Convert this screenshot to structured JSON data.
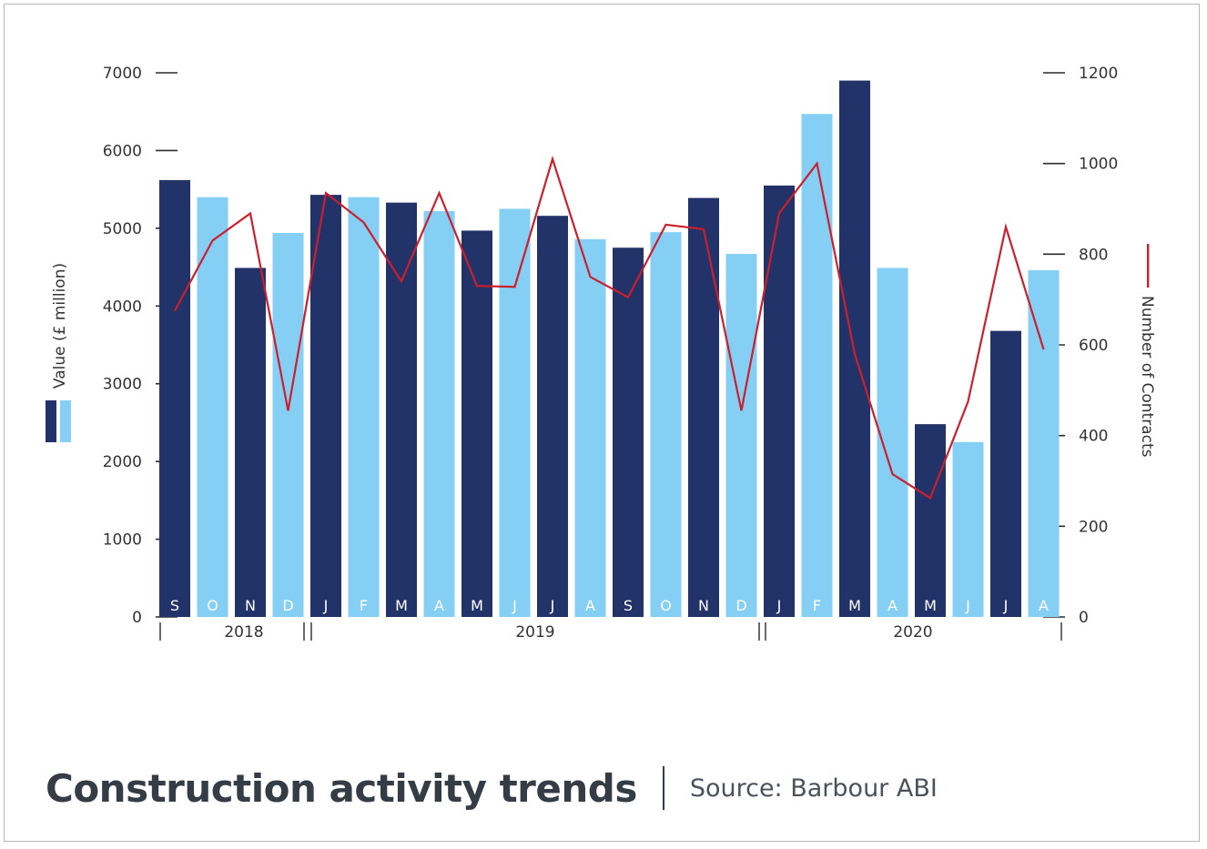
{
  "chart_data": {
    "type": "bar",
    "title": "Construction activity trends",
    "source": "Source: Barbour ABI",
    "ylabel_left": "Value (£ million)",
    "ylabel_right": "Number of Contracts",
    "ylim_left": [
      0,
      7000
    ],
    "ylim_right": [
      0,
      1200
    ],
    "yticks_left": [
      0,
      1000,
      2000,
      3000,
      4000,
      5000,
      6000,
      7000
    ],
    "yticks_right": [
      0,
      200,
      400,
      600,
      800,
      1000,
      1200
    ],
    "categories": [
      "S",
      "O",
      "N",
      "D",
      "J",
      "F",
      "M",
      "A",
      "M",
      "J",
      "J",
      "A",
      "S",
      "O",
      "N",
      "D",
      "J",
      "F",
      "M",
      "A",
      "M",
      "J",
      "J",
      "A"
    ],
    "years": [
      {
        "label": "2018",
        "start": 0,
        "end": 3
      },
      {
        "label": "2019",
        "start": 4,
        "end": 15
      },
      {
        "label": "2020",
        "start": 16,
        "end": 23
      }
    ],
    "series": [
      {
        "kind": "bar",
        "values": [
          5620,
          5400,
          4490,
          4940,
          5430,
          5400,
          5330,
          5220,
          4970,
          5250,
          5160,
          4860,
          4750,
          4950,
          5390,
          4670,
          5550,
          6470,
          6900,
          4490,
          2480,
          2250,
          3680,
          4460
        ]
      },
      {
        "kind": "line",
        "axis": "right",
        "values": [
          675,
          830,
          890,
          455,
          935,
          870,
          740,
          935,
          730,
          728,
          1010,
          750,
          705,
          865,
          855,
          455,
          890,
          1000,
          580,
          315,
          262,
          475,
          860,
          590
        ]
      }
    ],
    "colors": {
      "bar_dark": "#22336a",
      "bar_light": "#85cff4",
      "line": "#cc1f2d",
      "axis_text": "#333333"
    }
  }
}
